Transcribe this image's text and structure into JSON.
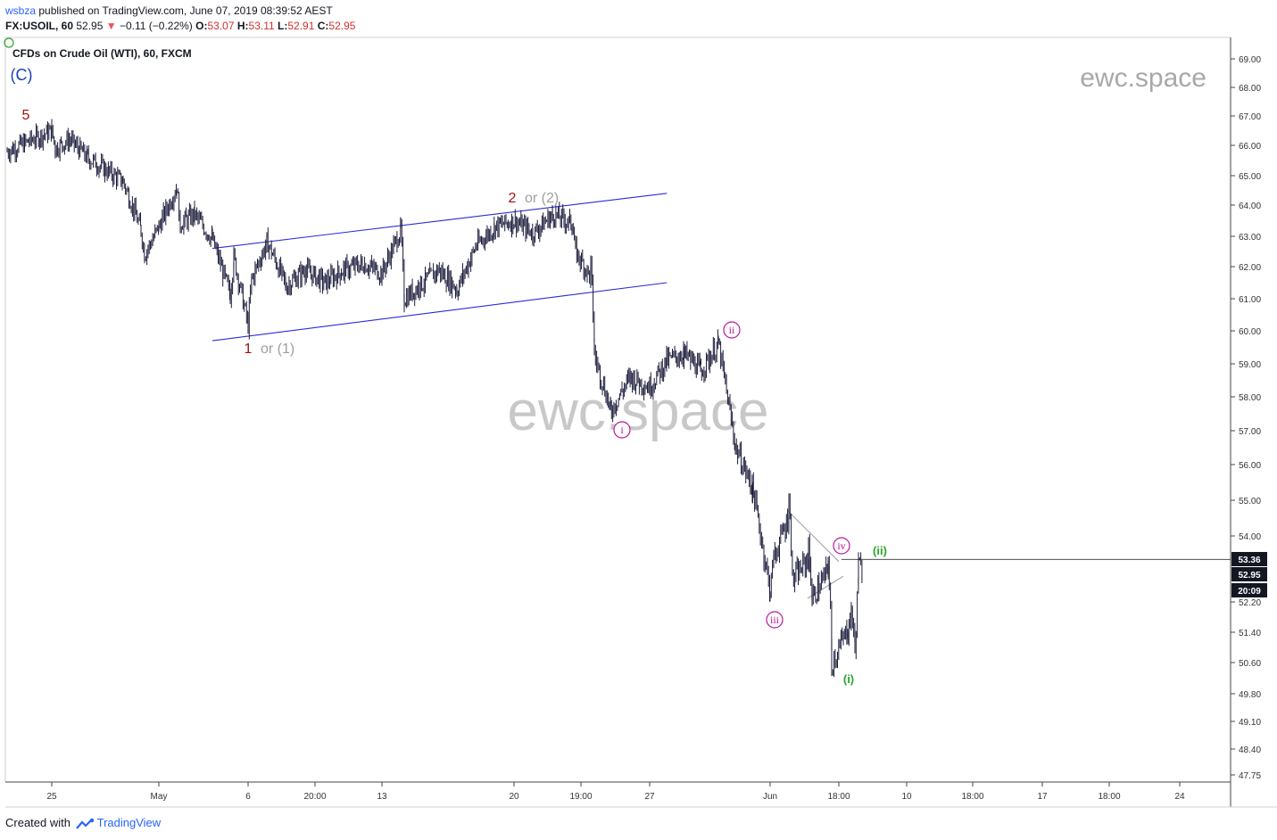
{
  "header": {
    "publisher": "wsbza",
    "published_text": "published on TradingView.com, June 07, 2019 08:39:52 AEST",
    "symbol": "FX:USOIL, 60",
    "last": "52.95",
    "change": "−0.11 (−0.22%)",
    "o_label": "O:",
    "o_value": "53.07",
    "h_label": "H:",
    "h_value": "53.11",
    "l_label": "L:",
    "l_value": "52.91",
    "c_label": "C:",
    "c_value": "52.95"
  },
  "series_title": "CFDs on Crude Oil (WTI), 60, FXCM",
  "watermarks": {
    "center": "ewc.space",
    "corner": "ewc.space"
  },
  "footer": {
    "created_with": "Created with",
    "brand": "TradingView"
  },
  "chart_data": {
    "type": "line",
    "instrument": "FX:USOIL",
    "interval": "60",
    "ylim": [
      47.5,
      69.3
    ],
    "yticks": [
      "69.00",
      "68.00",
      "67.00",
      "66.00",
      "65.00",
      "64.00",
      "63.00",
      "62.00",
      "61.00",
      "60.00",
      "59.00",
      "58.00",
      "57.00",
      "56.00",
      "55.00",
      "54.00",
      "52.20",
      "51.40",
      "50.60",
      "49.80",
      "49.10",
      "48.40",
      "47.75"
    ],
    "xticks": [
      "25",
      "May",
      "6",
      "20:00",
      "13",
      "20",
      "19:00",
      "27",
      "Jun",
      "18:00",
      "10",
      "18:00",
      "17",
      "18:00",
      "24"
    ],
    "price_path": [
      [
        "Apr 24",
        65.8
      ],
      [
        "Apr 25",
        66.5
      ],
      [
        "Apr 25",
        65.9
      ],
      [
        "Apr 26",
        66.2
      ],
      [
        "Apr 27",
        65.6
      ],
      [
        "Apr 29",
        64.8
      ],
      [
        "Apr 30",
        63.2
      ],
      [
        "Apr 30",
        62.4
      ],
      [
        "May 1",
        63.3
      ],
      [
        "May 2",
        64.6
      ],
      [
        "May 2",
        63.4
      ],
      [
        "May 3",
        63.7
      ],
      [
        "May 4",
        62.9
      ],
      [
        "May 5",
        61.1
      ],
      [
        "May 5",
        62.3
      ],
      [
        "May 6",
        60.2
      ],
      [
        "May 6",
        61.6
      ],
      [
        "May 7",
        62.8
      ],
      [
        "May 8",
        61.4
      ],
      [
        "May 9",
        61.9
      ],
      [
        "May 10",
        61.5
      ],
      [
        "May 11",
        61.9
      ],
      [
        "May 12",
        62.1
      ],
      [
        "May 13",
        61.8
      ],
      [
        "May 14",
        63.2
      ],
      [
        "May 14",
        61.0
      ],
      [
        "May 15",
        61.4
      ],
      [
        "May 16",
        61.9
      ],
      [
        "May 17",
        61.3
      ],
      [
        "May 18",
        62.7
      ],
      [
        "May 19",
        63.3
      ],
      [
        "May 20",
        63.5
      ],
      [
        "May 21",
        63.1
      ],
      [
        "May 22",
        63.7
      ],
      [
        "May 23",
        63.4
      ],
      [
        "May 23",
        62.5
      ],
      [
        "May 24",
        61.6
      ],
      [
        "May 24",
        59.2
      ],
      [
        "May 25",
        57.6
      ],
      [
        "May 26",
        58.6
      ],
      [
        "May 27",
        58.3
      ],
      [
        "May 28",
        59.1
      ],
      [
        "May 29",
        59.3
      ],
      [
        "May 30",
        58.8
      ],
      [
        "May 31",
        59.6
      ],
      [
        "Jun 1",
        56.5
      ],
      [
        "Jun 2",
        55.3
      ],
      [
        "Jun 3",
        52.5
      ],
      [
        "Jun 3",
        53.4
      ],
      [
        "Jun 4",
        54.6
      ],
      [
        "Jun 4",
        52.8
      ],
      [
        "Jun 5",
        53.4
      ],
      [
        "Jun 5",
        52.3
      ],
      [
        "Jun 6",
        53.1
      ],
      [
        "Jun 6",
        50.6
      ],
      [
        "Jun 7",
        51.5
      ],
      [
        "Jun 7",
        51.9
      ],
      [
        "Jun 7",
        51.1
      ],
      [
        "Jun 7",
        53.2
      ],
      [
        "Jun 7",
        52.95
      ]
    ],
    "price_labels": [
      {
        "text": "53.36",
        "value": 53.36,
        "bg": "#131722"
      },
      {
        "text": "52.95",
        "value": 52.95,
        "bg": "#131722"
      },
      {
        "text": "20:09",
        "value": 52.6,
        "bg": "#131722"
      }
    ],
    "horizontal_line": 53.36,
    "channel": {
      "upper": [
        [
          "May 4",
          62.6
        ],
        [
          "May 28",
          64.4
        ]
      ],
      "lower": [
        [
          "May 4",
          59.7
        ],
        [
          "May 28",
          61.5
        ]
      ]
    },
    "triangle": [
      [
        54.7,
        53.3
      ],
      [
        52.3,
        52.9
      ]
    ],
    "wave_labels": [
      {
        "text": "(C)",
        "color": "#1a3fb5"
      },
      {
        "text": "5",
        "color": "#a01010"
      },
      {
        "text": "1",
        "color": "#a01010",
        "alt": "or (1)",
        "alt_color": "#9e9e9e"
      },
      {
        "text": "2",
        "color": "#a01010",
        "alt": "or (2)",
        "alt_color": "#9e9e9e"
      },
      {
        "text": "i",
        "color": "#b8179a",
        "circled": true
      },
      {
        "text": "ii",
        "color": "#b8179a",
        "circled": true
      },
      {
        "text": "iii",
        "color": "#b8179a",
        "circled": true
      },
      {
        "text": "iv",
        "color": "#b8179a",
        "circled": true
      },
      {
        "text": "(i)",
        "color": "#2ea32e"
      },
      {
        "text": "(ii)",
        "color": "#2ea32e"
      }
    ],
    "colors": {
      "candles": "#1c1c3c",
      "channel": "#2b2bd6",
      "triangle": "#9a9aaa",
      "axis_text": "#333333"
    }
  }
}
